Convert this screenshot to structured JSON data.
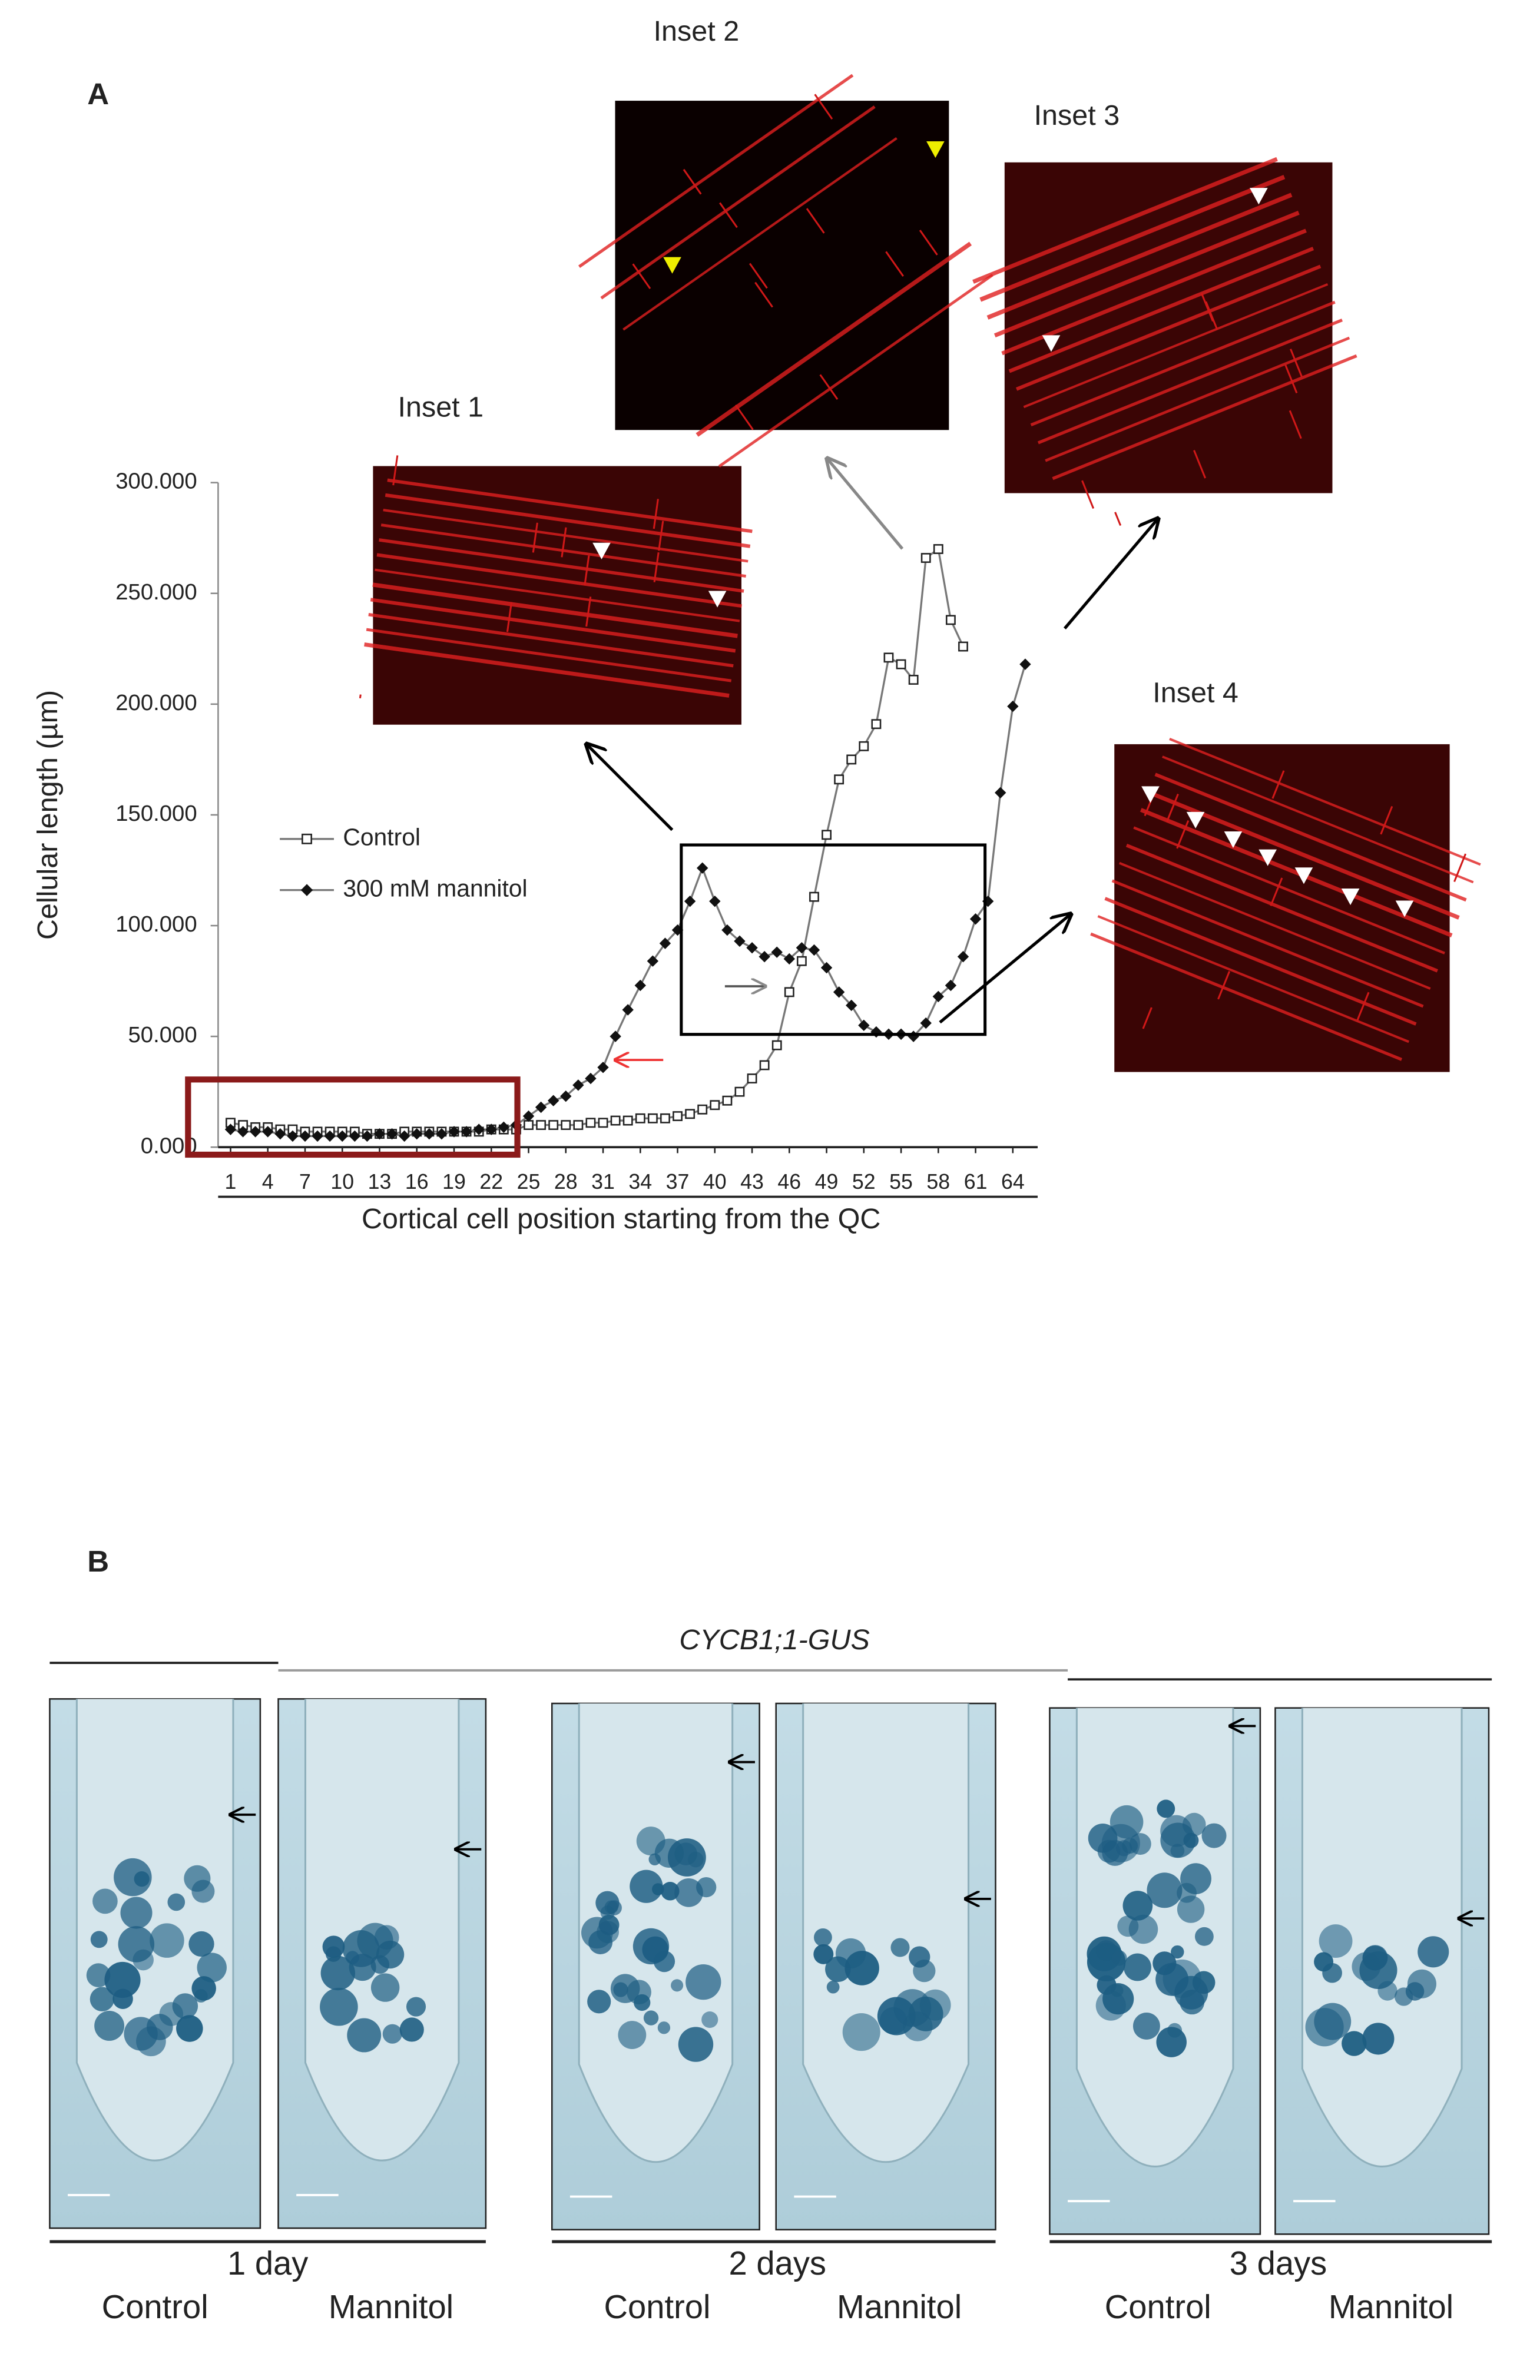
{
  "chart_data": {
    "type": "line",
    "y_label": "Cellular length (µm)",
    "x_label": "Cortical cell position starting from the QC",
    "x": [
      1,
      2,
      3,
      4,
      5,
      6,
      7,
      8,
      9,
      10,
      11,
      12,
      13,
      14,
      15,
      16,
      17,
      18,
      19,
      20,
      21,
      22,
      23,
      24,
      25,
      26,
      27,
      28,
      29,
      30,
      31,
      32,
      33,
      34,
      35,
      36,
      37,
      38,
      39,
      40,
      41,
      42,
      43,
      44,
      45,
      46,
      47,
      48,
      49,
      50,
      51,
      52,
      53,
      54,
      55,
      56,
      57,
      58,
      59,
      60,
      61,
      62,
      63,
      64,
      65
    ],
    "xlim": [
      0,
      66
    ],
    "xticks": [
      1,
      4,
      7,
      10,
      13,
      16,
      19,
      22,
      25,
      28,
      31,
      34,
      37,
      40,
      43,
      46,
      49,
      52,
      55,
      58,
      61,
      64
    ],
    "ylim": [
      0,
      300
    ],
    "yticks": [
      {
        "value": 0,
        "label": "0.000"
      },
      {
        "value": 50,
        "label": "50.000"
      },
      {
        "value": 100,
        "label": "100.000"
      },
      {
        "value": 150,
        "label": "150.000"
      },
      {
        "value": 200,
        "label": "200.000"
      },
      {
        "value": 250,
        "label": "250.000"
      },
      {
        "value": 300,
        "label": "300.000"
      }
    ],
    "legend": "center left",
    "series": [
      {
        "name": "Control",
        "color": "#777777",
        "marker": "square",
        "values": [
          11,
          10,
          9,
          9,
          8,
          8,
          7,
          7,
          7,
          7,
          7,
          6,
          6,
          6,
          7,
          7,
          7,
          7,
          7,
          7,
          7,
          8,
          8,
          8,
          10,
          10,
          10,
          10,
          10,
          11,
          11,
          12,
          12,
          13,
          13,
          13,
          14,
          15,
          17,
          19,
          21,
          25,
          31,
          37,
          46,
          70,
          84,
          113,
          141,
          166,
          175,
          181,
          191,
          221,
          218,
          211,
          266,
          270,
          238,
          226,
          null,
          null,
          null,
          null,
          null
        ]
      },
      {
        "name": "300 mM mannitol",
        "color": "#777777",
        "marker": "diamond",
        "values": [
          8,
          7,
          7,
          7,
          6,
          5,
          5,
          5,
          5,
          5,
          5,
          5,
          6,
          6,
          5,
          6,
          6,
          6,
          7,
          7,
          8,
          8,
          9,
          10,
          14,
          18,
          21,
          23,
          28,
          31,
          36,
          50,
          62,
          73,
          84,
          92,
          98,
          111,
          126,
          111,
          98,
          93,
          90,
          86,
          88,
          85,
          90,
          89,
          81,
          70,
          64,
          55,
          52,
          51,
          51,
          50,
          56,
          68,
          73,
          86,
          103,
          111,
          160,
          199,
          218
        ]
      }
    ]
  },
  "panel_a": {
    "label": "A",
    "insets": [
      "Inset 1",
      "Inset 2",
      "Inset 3",
      "Inset 4"
    ]
  },
  "panel_b": {
    "label": "B",
    "gene": "CYCB1;1-GUS",
    "groups": [
      {
        "label": "1 day",
        "conditions": [
          "Control",
          "Mannitol"
        ]
      },
      {
        "label": "2 days",
        "conditions": [
          "Control",
          "Mannitol"
        ]
      },
      {
        "label": "3 days",
        "conditions": [
          "Control",
          "Mannitol"
        ]
      }
    ]
  }
}
